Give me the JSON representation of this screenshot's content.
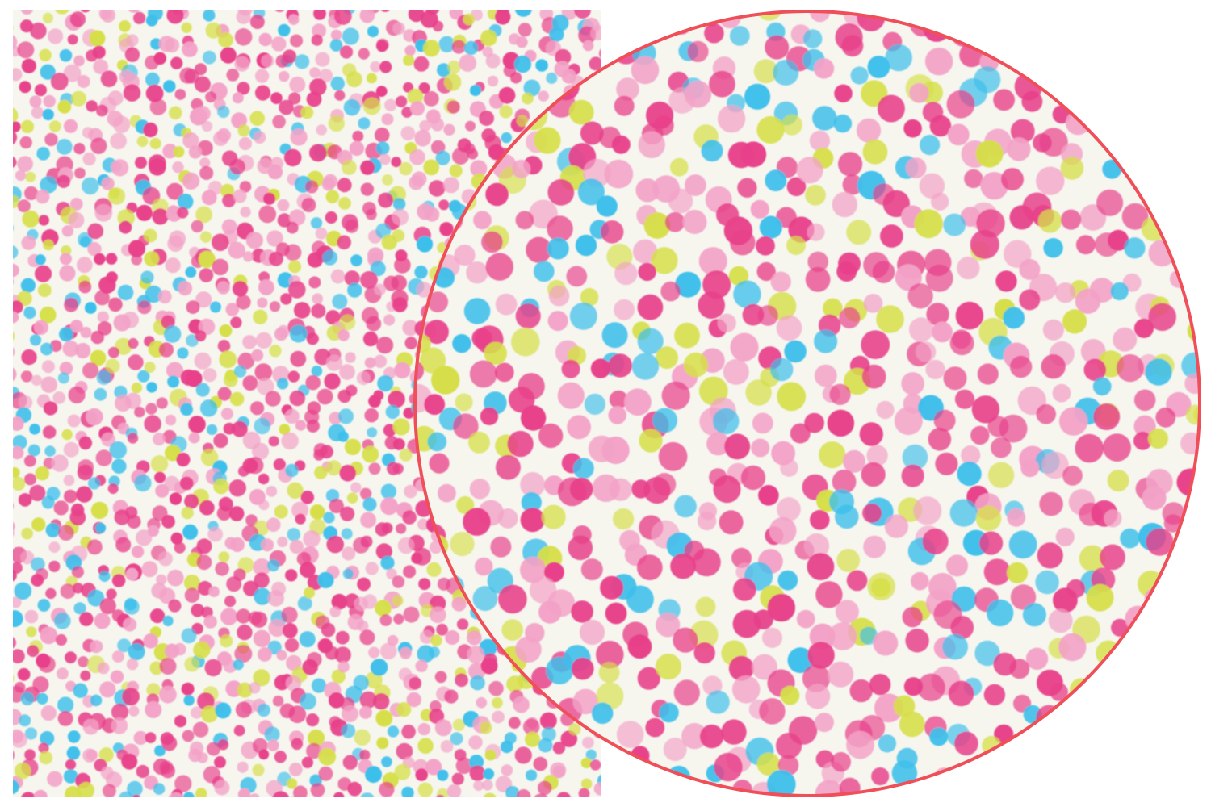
{
  "product": {
    "paper_background": "#f6f6ef",
    "magnifier_border": "#ef4f58",
    "dot_colors": {
      "hot_pink": "#e8418a",
      "light_pink": "#f3a2c7",
      "cyan": "#3dbfeb",
      "yellow_green": "#d6df48"
    }
  }
}
